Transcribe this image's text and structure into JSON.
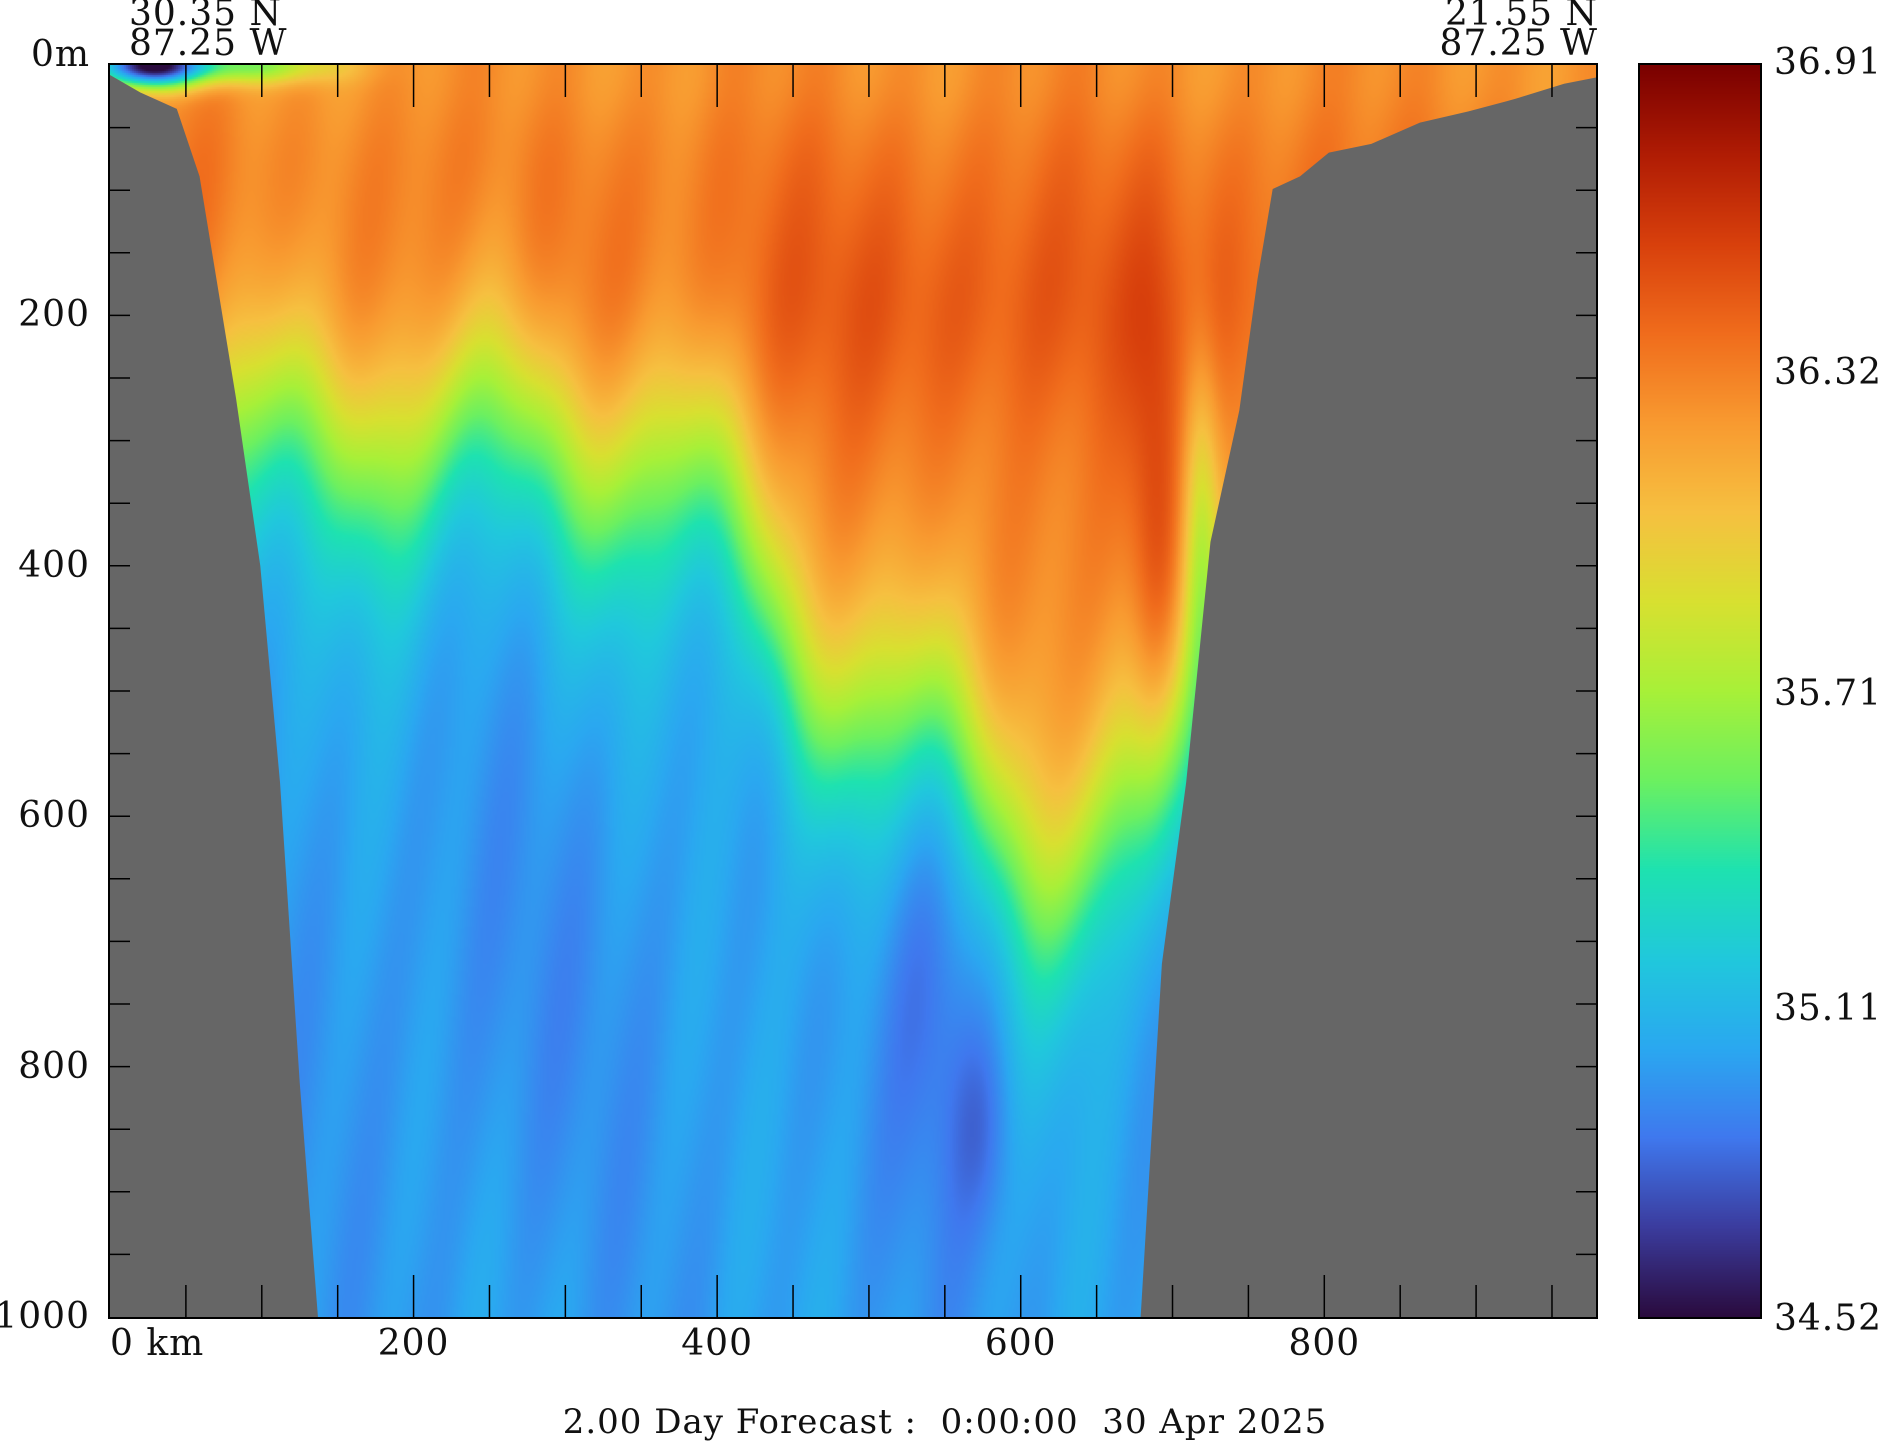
{
  "chart_data": {
    "type": "heatmap",
    "title": "2.00 Day Forecast :  0:00:00  30 Apr 2025",
    "start_point": {
      "lat": "30.35 N",
      "lon": "87.25 W"
    },
    "end_point": {
      "lat": "21.55 N",
      "lon": "87.25 W"
    },
    "xlabel": "km",
    "ylabel": "m",
    "xlim": [
      0,
      979
    ],
    "ylim": [
      0,
      1000
    ],
    "x_ticks": [
      {
        "v": 0,
        "label": "0 km"
      },
      {
        "v": 200,
        "label": "200"
      },
      {
        "v": 400,
        "label": "400"
      },
      {
        "v": 600,
        "label": "600"
      },
      {
        "v": 800,
        "label": "800"
      }
    ],
    "y_ticks": [
      {
        "v": 0,
        "label": "0m"
      },
      {
        "v": 200,
        "label": "200"
      },
      {
        "v": 400,
        "label": "400"
      },
      {
        "v": 600,
        "label": "600"
      },
      {
        "v": 800,
        "label": "800"
      },
      {
        "v": 1000,
        "label": "1000"
      }
    ],
    "colorbar": {
      "min": 34.52,
      "max": 36.91,
      "labels": [
        "36.91",
        "36.32",
        "35.71",
        "35.11",
        "34.52"
      ],
      "label_values": [
        36.91,
        36.32,
        35.71,
        35.11,
        34.52
      ],
      "colors": [
        "#2a0b3e",
        "#3b3c9e",
        "#3f78ee",
        "#2aa8f0",
        "#20c8dc",
        "#1ee2b0",
        "#6cf060",
        "#a8f038",
        "#d8e030",
        "#f6c040",
        "#f89a30",
        "#f06c1c",
        "#d8400c",
        "#b01c04",
        "#7a0000"
      ]
    },
    "bathymetry": [
      [
        0,
        8
      ],
      [
        20,
        22
      ],
      [
        44,
        35
      ],
      [
        59,
        89
      ],
      [
        70,
        170
      ],
      [
        83,
        266
      ],
      [
        99,
        400
      ],
      [
        112,
        573
      ],
      [
        125,
        813
      ],
      [
        137,
        1000
      ],
      [
        679,
        1000
      ],
      [
        693,
        718
      ],
      [
        709,
        573
      ],
      [
        725,
        381
      ],
      [
        744,
        276
      ],
      [
        756,
        171
      ],
      [
        766,
        99
      ],
      [
        784,
        89
      ],
      [
        803,
        70
      ],
      [
        831,
        63
      ],
      [
        863,
        46
      ],
      [
        895,
        37
      ],
      [
        926,
        27
      ],
      [
        958,
        15
      ],
      [
        979,
        10
      ]
    ],
    "land_color": "#666666"
  }
}
